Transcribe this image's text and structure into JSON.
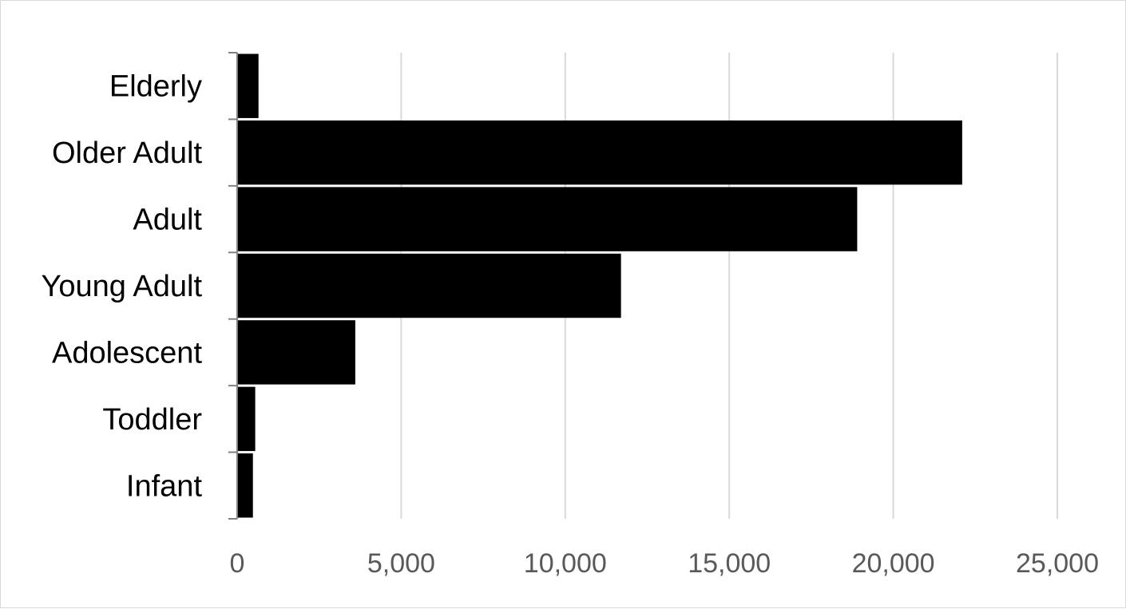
{
  "chart_data": {
    "type": "bar",
    "orientation": "horizontal",
    "title": "",
    "xlabel": "",
    "ylabel": "",
    "categories": [
      "Elderly",
      "Older Adult",
      "Adult",
      "Young Adult",
      "Adolescent",
      "Toddler",
      "Infant"
    ],
    "values": [
      650,
      22100,
      18900,
      11700,
      3600,
      550,
      480
    ],
    "xlim": [
      0,
      25000
    ],
    "xticks": [
      0,
      5000,
      10000,
      15000,
      20000,
      25000
    ],
    "xtick_labels": [
      "0",
      "5,000",
      "10,000",
      "15,000",
      "20,000",
      "25,000"
    ],
    "grid": "vertical",
    "legend": "none",
    "colors": {
      "bar": "#000000",
      "grid": "#d9d9d9",
      "axis": "#808080",
      "tick_text": "#595959",
      "label_text": "#000000"
    }
  }
}
